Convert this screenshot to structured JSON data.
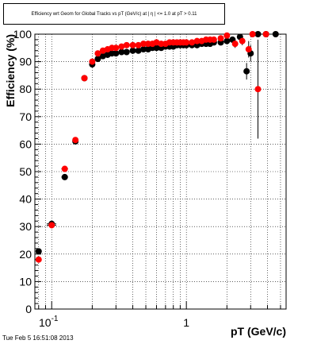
{
  "title": "Efficiency wrt Geom for Global Tracks vs pT (GeV/c) at |  η  | <= 1.0 at pT > 0.11",
  "footer": "Tue Feb  5 16:51:08 2013",
  "chart_data": {
    "type": "scatter",
    "title": "Efficiency wrt Geom for Global Tracks vs pT (GeV/c) at |  η  | <= 1.0 at pT > 0.11",
    "xlabel": "pT (GeV/c)",
    "ylabel": "Efficiency (%)",
    "xscale": "log",
    "xlim": [
      0.075,
      5.5
    ],
    "ylim": [
      0,
      100
    ],
    "yticks": [
      0,
      10,
      20,
      30,
      40,
      50,
      60,
      70,
      80,
      90,
      100
    ],
    "xtick_labels": [
      {
        "value": 0.1,
        "base": "10",
        "exp": "-1"
      },
      {
        "value": 1,
        "label": "1"
      }
    ],
    "grid": true,
    "series": [
      {
        "color": "#000000",
        "points": [
          {
            "x": 0.08,
            "y": 21,
            "xerr": 0.004,
            "yerr": 0
          },
          {
            "x": 0.1,
            "y": 31,
            "xerr": 0.008,
            "yerr": 0
          },
          {
            "x": 0.125,
            "y": 48,
            "xerr": 0.007,
            "yerr": 0
          },
          {
            "x": 0.15,
            "y": 61,
            "yerr": 0
          },
          {
            "x": 0.175,
            "y": 84,
            "yerr": 0
          },
          {
            "x": 0.2,
            "y": 89,
            "yerr": 0
          },
          {
            "x": 0.22,
            "y": 91,
            "yerr": 0
          },
          {
            "x": 0.24,
            "y": 92,
            "yerr": 0
          },
          {
            "x": 0.26,
            "y": 92.5,
            "yerr": 0
          },
          {
            "x": 0.28,
            "y": 93,
            "yerr": 0
          },
          {
            "x": 0.3,
            "y": 93,
            "yerr": 0
          },
          {
            "x": 0.33,
            "y": 93.5,
            "yerr": 0
          },
          {
            "x": 0.36,
            "y": 93.5,
            "yerr": 0
          },
          {
            "x": 0.4,
            "y": 94,
            "yerr": 0
          },
          {
            "x": 0.44,
            "y": 94,
            "yerr": 0
          },
          {
            "x": 0.48,
            "y": 94.5,
            "yerr": 0
          },
          {
            "x": 0.52,
            "y": 94.5,
            "yerr": 0
          },
          {
            "x": 0.56,
            "y": 95,
            "yerr": 0
          },
          {
            "x": 0.6,
            "y": 95,
            "yerr": 0
          },
          {
            "x": 0.65,
            "y": 95,
            "yerr": 0
          },
          {
            "x": 0.7,
            "y": 95.5,
            "yerr": 0
          },
          {
            "x": 0.75,
            "y": 95.5,
            "yerr": 0
          },
          {
            "x": 0.8,
            "y": 95.5,
            "yerr": 0
          },
          {
            "x": 0.85,
            "y": 96,
            "yerr": 0
          },
          {
            "x": 0.9,
            "y": 96,
            "yerr": 0
          },
          {
            "x": 0.95,
            "y": 96,
            "yerr": 0
          },
          {
            "x": 1.0,
            "y": 96,
            "yerr": 0
          },
          {
            "x": 1.1,
            "y": 96,
            "yerr": 0
          },
          {
            "x": 1.2,
            "y": 96,
            "yerr": 0
          },
          {
            "x": 1.3,
            "y": 96.5,
            "yerr": 0
          },
          {
            "x": 1.4,
            "y": 96.5,
            "yerr": 0
          },
          {
            "x": 1.5,
            "y": 96.5,
            "yerr": 0
          },
          {
            "x": 1.6,
            "y": 97,
            "yerr": 0.5
          },
          {
            "x": 1.8,
            "y": 97,
            "yerr": 0.5
          },
          {
            "x": 2.0,
            "y": 97.5,
            "yerr": 0.6
          },
          {
            "x": 2.2,
            "y": 98,
            "yerr": 0.8
          },
          {
            "x": 2.5,
            "y": 99,
            "yerr": 1
          },
          {
            "x": 2.8,
            "y": 86.5,
            "yerr": 3
          },
          {
            "x": 3.0,
            "y": 93,
            "yerr": 3
          },
          {
            "x": 3.4,
            "y": 100,
            "yerr": 0
          },
          {
            "x": 3.9,
            "y": 100,
            "yerr": 0
          },
          {
            "x": 4.6,
            "y": 100,
            "yerr": 0
          }
        ]
      },
      {
        "color": "#ff0000",
        "points": [
          {
            "x": 0.08,
            "y": 18,
            "xerr": 0.004,
            "yerr": 0
          },
          {
            "x": 0.1,
            "y": 30.5,
            "xerr": 0.008,
            "yerr": 0
          },
          {
            "x": 0.125,
            "y": 51,
            "xerr": 0.007,
            "yerr": 0
          },
          {
            "x": 0.15,
            "y": 61.5,
            "yerr": 0
          },
          {
            "x": 0.175,
            "y": 84,
            "yerr": 0
          },
          {
            "x": 0.2,
            "y": 90,
            "yerr": 0
          },
          {
            "x": 0.22,
            "y": 93,
            "yerr": 0
          },
          {
            "x": 0.24,
            "y": 94,
            "yerr": 0
          },
          {
            "x": 0.26,
            "y": 94.5,
            "yerr": 0
          },
          {
            "x": 0.28,
            "y": 95,
            "yerr": 0
          },
          {
            "x": 0.3,
            "y": 95,
            "yerr": 0
          },
          {
            "x": 0.33,
            "y": 95.5,
            "yerr": 0
          },
          {
            "x": 0.36,
            "y": 96,
            "yerr": 0
          },
          {
            "x": 0.4,
            "y": 96,
            "yerr": 0
          },
          {
            "x": 0.44,
            "y": 96,
            "yerr": 0
          },
          {
            "x": 0.48,
            "y": 96.5,
            "yerr": 0
          },
          {
            "x": 0.52,
            "y": 96.5,
            "yerr": 0
          },
          {
            "x": 0.56,
            "y": 96.5,
            "yerr": 0
          },
          {
            "x": 0.6,
            "y": 97,
            "yerr": 0
          },
          {
            "x": 0.65,
            "y": 96.5,
            "yerr": 0
          },
          {
            "x": 0.7,
            "y": 96.5,
            "yerr": 0
          },
          {
            "x": 0.75,
            "y": 97,
            "yerr": 0
          },
          {
            "x": 0.8,
            "y": 97,
            "yerr": 0
          },
          {
            "x": 0.85,
            "y": 97,
            "yerr": 0
          },
          {
            "x": 0.9,
            "y": 97,
            "yerr": 0
          },
          {
            "x": 0.95,
            "y": 97,
            "yerr": 0
          },
          {
            "x": 1.0,
            "y": 97,
            "yerr": 0
          },
          {
            "x": 1.1,
            "y": 97,
            "yerr": 0
          },
          {
            "x": 1.2,
            "y": 97.5,
            "yerr": 0
          },
          {
            "x": 1.3,
            "y": 97.5,
            "yerr": 0
          },
          {
            "x": 1.4,
            "y": 98,
            "yerr": 0
          },
          {
            "x": 1.5,
            "y": 98,
            "yerr": 0
          },
          {
            "x": 1.6,
            "y": 98,
            "yerr": 0.5
          },
          {
            "x": 1.8,
            "y": 98.5,
            "yerr": 0.5
          },
          {
            "x": 2.0,
            "y": 99.5,
            "yerr": 0.5
          },
          {
            "x": 2.3,
            "y": 96.5,
            "yerr": 1.5
          },
          {
            "x": 2.6,
            "y": 97.5,
            "yerr": 1.5
          },
          {
            "x": 2.9,
            "y": 94.5,
            "yerr": 3
          },
          {
            "x": 3.1,
            "y": 100,
            "yerr": 0
          },
          {
            "x": 3.4,
            "y": 80,
            "yerr": 18
          },
          {
            "x": 3.9,
            "y": 100,
            "yerr": 0
          }
        ]
      }
    ]
  }
}
